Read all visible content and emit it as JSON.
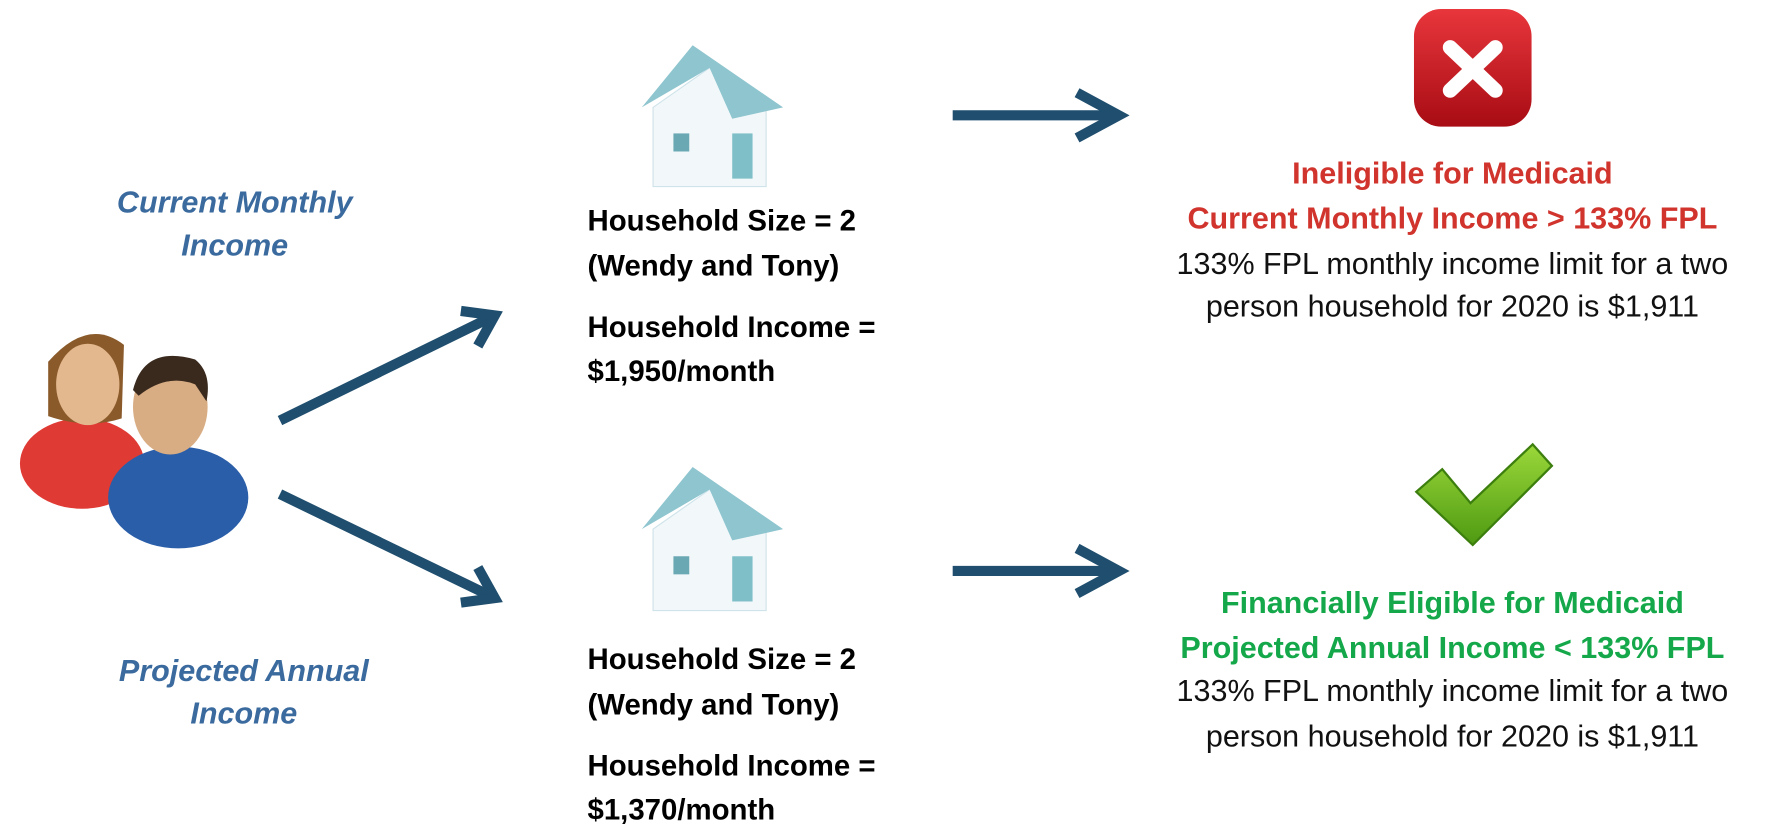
{
  "left_labels": [
    [
      "Current Monthly",
      "Income"
    ],
    [
      "Projected Annual",
      "Income"
    ]
  ],
  "rows": [
    {
      "household_size": "Household Size = 2",
      "members": "(Wendy and Tony)",
      "income_label": "Household Income =",
      "income": "$1,950/month",
      "result_title": "Ineligible for Medicaid",
      "result_reason": "Current Monthly Income > 133% FPL",
      "note_lines": [
        "133% FPL monthly income limit for a two",
        "person household for 2020 is $1,911"
      ]
    },
    {
      "household_size": "Household Size = 2",
      "members": "(Wendy and Tony)",
      "income_label": "Household Income =",
      "income": "$1,370/month",
      "result_title": "Financially Eligible for Medicaid",
      "result_reason": "Projected Annual Income < 133% FPL",
      "note_lines": [
        "133% FPL monthly income limit for a two",
        "person household for 2020 is $1,911"
      ]
    }
  ]
}
